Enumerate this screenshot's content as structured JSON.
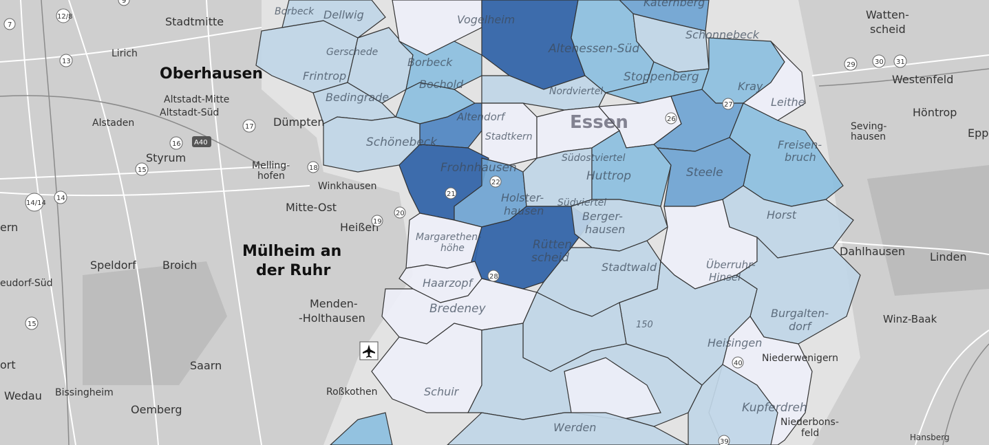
{
  "map": {
    "city_labels": {
      "oberhausen": "Oberhausen",
      "muelheim_1": "Mülheim an",
      "muelheim_2": "der Ruhr",
      "essen": "Essen"
    },
    "place_labels": {
      "stadtmitte": "Stadtmitte",
      "lirich": "Lirich",
      "altstadt_mitte": "Altstadt-Mitte",
      "altstadt_sued": "Altstadt-Süd",
      "alstaden": "Alstaden",
      "duempten": "Dümpten",
      "styrum": "Styrum",
      "melling_1": "Melling-",
      "melling_2": "hofen",
      "winkhausen": "Winkhausen",
      "mitte_ost": "Mitte-Ost",
      "heissen": "Heißen",
      "speldorf": "Speldorf",
      "broich": "Broich",
      "eudorf": "eudorf-Süd",
      "menden_1": "Menden-",
      "menden_2": "-Holthausen",
      "saarn": "Saarn",
      "wedau": "Wedau",
      "bissingheim": "Bissingheim",
      "oemberg": "Oemberg",
      "rosskothen": "Roßkothen",
      "ort": "ort",
      "ern": "ern",
      "wattenscheid_1": "Watten-",
      "wattenscheid_2": "scheid",
      "westenfeld": "Westenfeld",
      "hoentrop": "Höntrop",
      "sevinghausen_1": "Seving-",
      "sevinghausen_2": "hausen",
      "epp": "Epp",
      "dahlhausen": "Dahlhausen",
      "linden": "Linden",
      "winz_baak": "Winz-Baak",
      "niederwenigern": "Niederwenigern",
      "niederbonsfeld_1": "Niederbons-",
      "niederbonsfeld_2": "feld",
      "hansberg": "Hansberg",
      "borbeck_top": "Borbeck",
      "dellwig": "Dellwig",
      "vogelheim": "Vogelheim",
      "katernberg": "Katernberg",
      "schonnebeck": "Schonnebeck",
      "frintrop": "Frintrop",
      "gerschede": "Gerschede",
      "bergeborbeck": "Borbeck",
      "bochold": "Bochold",
      "altenessen_sued": "Altenessen-Süd",
      "stoppenberg": "Stoppenberg",
      "bedingrade": "Bedingrade",
      "nordviertel": "Nordviertel",
      "kray": "Kray",
      "leithe": "Leithe",
      "altendorf": "Altendorf",
      "schoenebeck": "Schönebeck",
      "stadtkern": "Stadtkern",
      "suedostviertel": "Südostviertel",
      "freisenbruch_1": "Freisen-",
      "freisenbruch_2": "bruch",
      "frohnhausen": "Frohnhausen",
      "huttrop": "Huttrop",
      "steele": "Steele",
      "holsterhausen_1": "Holster-",
      "holsterhausen_2": "hausen",
      "suedviertel": "Südviertel",
      "horst": "Horst",
      "bergerhausen_1": "Berger-",
      "bergerhausen_2": "hausen",
      "ruettenscheid_1": "Rütten",
      "ruettenscheid_2": "scheid",
      "margarethenhoehe_1": "Margarethen-",
      "margarethenhoehe_2": "höhe",
      "stadtwald": "Stadtwald",
      "ueberruhr_1": "Überruhr-",
      "ueberruhr_2": "Hinsel",
      "haarzopf": "Haarzopf",
      "bredeney": "Bredeney",
      "burgaltendorf_1": "Burgalten-",
      "burgaltendorf_2": "dorf",
      "heisingen": "Heisingen",
      "schuir": "Schuir",
      "kupferdreh": "Kupferdreh",
      "werden": "Werden",
      "elev_150": "150"
    },
    "road_shields": [
      "7",
      "12/8",
      "13",
      "17",
      "16",
      "15",
      "14/14",
      "14",
      "15",
      "A40",
      "18",
      "19",
      "20",
      "21",
      "22",
      "26",
      "27",
      "28",
      "29",
      "30",
      "31",
      "40",
      "39",
      "9"
    ],
    "colors": {
      "water_bg": "#e9e9e9",
      "choropleth_scale": [
        "#eeeff8",
        "#d6e3ef",
        "#c0d6e7",
        "#a9cbe3",
        "#8cbfe0",
        "#6fa4d2",
        "#4f86c2",
        "#2f62a7"
      ]
    },
    "icons": {
      "airport": "airplane-icon"
    }
  }
}
